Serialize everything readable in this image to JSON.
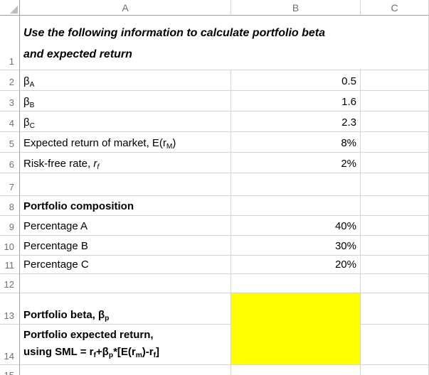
{
  "colors": {
    "highlight_fill": "#FFFF00",
    "gridline": "#D4D4D4",
    "header_text": "#707070"
  },
  "column_headers": [
    "A",
    "B",
    "C"
  ],
  "row_headers": [
    "1",
    "2",
    "3",
    "4",
    "5",
    "6",
    "7",
    "8",
    "9",
    "10",
    "11",
    "12",
    "13",
    "14",
    "15"
  ],
  "cells": {
    "a1_title": [
      {
        "t": "Use the following information to calculate portfolio beta"
      },
      {
        "br": true
      },
      {
        "t": "and expected return"
      }
    ],
    "a2": [
      {
        "t": "β"
      },
      {
        "t": "A",
        "sub": true
      }
    ],
    "b2": "0.5",
    "a3": [
      {
        "t": "β"
      },
      {
        "t": "B",
        "sub": true
      }
    ],
    "b3": "1.6",
    "a4": [
      {
        "t": "β"
      },
      {
        "t": "C",
        "sub": true
      }
    ],
    "b4": "2.3",
    "a5": [
      {
        "t": "Expected return of market, E(r"
      },
      {
        "t": "M",
        "sub": true
      },
      {
        "t": ")"
      }
    ],
    "b5": "8%",
    "a6": [
      {
        "t": "Risk-free rate, "
      },
      {
        "t": "r",
        "i": true
      },
      {
        "t": "f",
        "sub": true,
        "i": true
      }
    ],
    "b6": "2%",
    "a8": "Portfolio composition",
    "a9": "Percentage A",
    "b9": "40%",
    "a10": "Percentage B",
    "b10": "30%",
    "a11": "Percentage C",
    "b11": "20%",
    "a13": [
      {
        "t": "Portfolio beta, β"
      },
      {
        "t": "p",
        "sub": true
      }
    ],
    "a14": [
      {
        "t": "Portfolio expected return,"
      },
      {
        "br": true
      },
      {
        "t": "using SML = r"
      },
      {
        "t": "f",
        "sub": true
      },
      {
        "t": "+β"
      },
      {
        "t": "p",
        "sub": true
      },
      {
        "t": "*[E(r"
      },
      {
        "t": "m",
        "sub": true
      },
      {
        "t": ")-r"
      },
      {
        "t": "f",
        "sub": true
      },
      {
        "t": "]"
      }
    ]
  }
}
